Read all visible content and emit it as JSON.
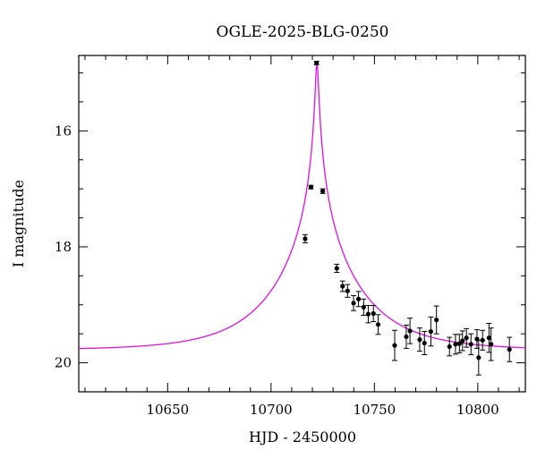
{
  "chart_data": {
    "type": "scatter",
    "title": "OGLE-2025-BLG-0250",
    "xlabel": "HJD - 2450000",
    "ylabel": "I magnitude",
    "xlim": [
      10607,
      10823
    ],
    "ylim": [
      20.5,
      14.7
    ],
    "y_inverted": true,
    "x_ticks": [
      10650,
      10700,
      10750,
      10800
    ],
    "y_ticks": [
      16,
      18,
      20
    ],
    "x_minor_step": 10,
    "y_minor_step": 0.5,
    "grid": false,
    "colors": {
      "model": "#e010e0",
      "points": "#000000"
    },
    "model_curve": {
      "name": "",
      "t0": 10722.2,
      "peak_mag": 14.82,
      "base_mag": 19.78,
      "u0": 0.02,
      "tE": 35
    },
    "points": [
      {
        "x": 10716.5,
        "y": 17.86,
        "err": 0.07
      },
      {
        "x": 10719.3,
        "y": 16.97,
        "err": 0.03
      },
      {
        "x": 10722.0,
        "y": 14.83,
        "err": 0.03
      },
      {
        "x": 10725.0,
        "y": 17.04,
        "err": 0.04
      },
      {
        "x": 10731.8,
        "y": 18.37,
        "err": 0.07
      },
      {
        "x": 10734.6,
        "y": 18.68,
        "err": 0.09
      },
      {
        "x": 10737.0,
        "y": 18.76,
        "err": 0.11
      },
      {
        "x": 10739.9,
        "y": 18.97,
        "err": 0.13
      },
      {
        "x": 10742.3,
        "y": 18.9,
        "err": 0.13
      },
      {
        "x": 10744.8,
        "y": 19.04,
        "err": 0.14
      },
      {
        "x": 10747.0,
        "y": 19.16,
        "err": 0.15
      },
      {
        "x": 10749.5,
        "y": 19.15,
        "err": 0.14
      },
      {
        "x": 10751.8,
        "y": 19.34,
        "err": 0.17
      },
      {
        "x": 10759.8,
        "y": 19.7,
        "err": 0.26
      },
      {
        "x": 10765.4,
        "y": 19.55,
        "err": 0.2
      },
      {
        "x": 10767.2,
        "y": 19.45,
        "err": 0.22
      },
      {
        "x": 10771.9,
        "y": 19.6,
        "err": 0.2
      },
      {
        "x": 10774.2,
        "y": 19.66,
        "err": 0.2
      },
      {
        "x": 10777.3,
        "y": 19.46,
        "err": 0.25
      },
      {
        "x": 10780.0,
        "y": 19.26,
        "err": 0.24
      },
      {
        "x": 10786.3,
        "y": 19.72,
        "err": 0.16
      },
      {
        "x": 10789.2,
        "y": 19.68,
        "err": 0.17
      },
      {
        "x": 10791.1,
        "y": 19.67,
        "err": 0.16
      },
      {
        "x": 10792.6,
        "y": 19.62,
        "err": 0.17
      },
      {
        "x": 10794.5,
        "y": 19.57,
        "err": 0.16
      },
      {
        "x": 10796.7,
        "y": 19.68,
        "err": 0.18
      },
      {
        "x": 10799.6,
        "y": 19.59,
        "err": 0.16
      },
      {
        "x": 10800.4,
        "y": 19.91,
        "err": 0.3
      },
      {
        "x": 10802.3,
        "y": 19.61,
        "err": 0.17
      },
      {
        "x": 10805.4,
        "y": 19.57,
        "err": 0.25
      },
      {
        "x": 10806.4,
        "y": 19.68,
        "err": 0.28
      },
      {
        "x": 10815.3,
        "y": 19.77,
        "err": 0.21
      }
    ]
  }
}
